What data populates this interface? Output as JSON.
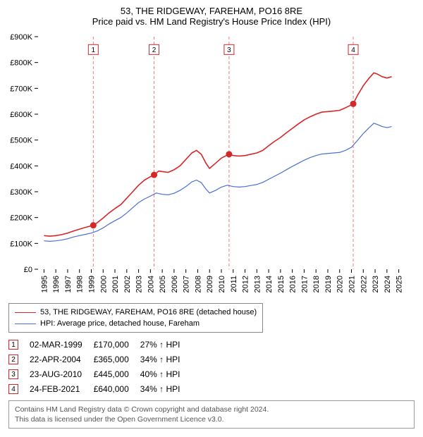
{
  "titles": {
    "line1": "53, THE RIDGEWAY, FAREHAM, PO16 8RE",
    "line2": "Price paid vs. HM Land Registry's House Price Index (HPI)"
  },
  "chart": {
    "type": "line",
    "background_color": "#ffffff",
    "xlim": [
      1994.5,
      2025.5
    ],
    "ylim": [
      0,
      900000
    ],
    "xtick_step": 1,
    "xtick_labels": [
      "1995",
      "1996",
      "1997",
      "1998",
      "1999",
      "2000",
      "2001",
      "2002",
      "2003",
      "2004",
      "2005",
      "2006",
      "2007",
      "2008",
      "2009",
      "2010",
      "2011",
      "2012",
      "2013",
      "2014",
      "2015",
      "2016",
      "2017",
      "2018",
      "2019",
      "2020",
      "2021",
      "2022",
      "2023",
      "2024",
      "2025"
    ],
    "ytick_step": 100000,
    "ytick_labels": [
      "£0",
      "£100K",
      "£200K",
      "£300K",
      "£400K",
      "£500K",
      "£600K",
      "£700K",
      "£800K",
      "£900K"
    ],
    "ytick_color": "#000000",
    "ytick_fontsize": 11,
    "xtick_fontsize": 11,
    "x_tick_length": 5,
    "y_tick_length": 5,
    "tick_color": "#000000",
    "event_vline": {
      "color": "#e67f7f",
      "dash": "4 3",
      "width": 1
    },
    "event_box": {
      "border_color": "#d62728",
      "bg_color": "#ffffff",
      "text_color": "#000000",
      "size": 14,
      "fontsize": 10,
      "y_value": 850000
    },
    "series": [
      {
        "id": "property",
        "label": "53, THE RIDGEWAY, FAREHAM, PO16 8RE (detached house)",
        "color": "#d62728",
        "width": 1.6,
        "marker": {
          "shape": "circle",
          "size": 4.5,
          "color": "#d62728"
        },
        "marker_points": [
          {
            "x": 1999.17,
            "y": 170000
          },
          {
            "x": 2004.31,
            "y": 365000
          },
          {
            "x": 2010.65,
            "y": 445000
          },
          {
            "x": 2021.15,
            "y": 640000
          }
        ],
        "points": [
          {
            "x": 1995.0,
            "y": 130000
          },
          {
            "x": 1995.5,
            "y": 128000
          },
          {
            "x": 1996.0,
            "y": 130000
          },
          {
            "x": 1996.5,
            "y": 134000
          },
          {
            "x": 1997.0,
            "y": 140000
          },
          {
            "x": 1997.5,
            "y": 148000
          },
          {
            "x": 1998.0,
            "y": 155000
          },
          {
            "x": 1998.5,
            "y": 162000
          },
          {
            "x": 1999.0,
            "y": 168000
          },
          {
            "x": 1999.17,
            "y": 170000
          },
          {
            "x": 1999.5,
            "y": 180000
          },
          {
            "x": 2000.0,
            "y": 198000
          },
          {
            "x": 2000.5,
            "y": 218000
          },
          {
            "x": 2001.0,
            "y": 235000
          },
          {
            "x": 2001.5,
            "y": 250000
          },
          {
            "x": 2002.0,
            "y": 275000
          },
          {
            "x": 2002.5,
            "y": 300000
          },
          {
            "x": 2003.0,
            "y": 325000
          },
          {
            "x": 2003.5,
            "y": 345000
          },
          {
            "x": 2004.0,
            "y": 358000
          },
          {
            "x": 2004.31,
            "y": 365000
          },
          {
            "x": 2004.7,
            "y": 380000
          },
          {
            "x": 2005.0,
            "y": 378000
          },
          {
            "x": 2005.5,
            "y": 375000
          },
          {
            "x": 2006.0,
            "y": 385000
          },
          {
            "x": 2006.5,
            "y": 400000
          },
          {
            "x": 2007.0,
            "y": 425000
          },
          {
            "x": 2007.5,
            "y": 450000
          },
          {
            "x": 2007.9,
            "y": 460000
          },
          {
            "x": 2008.3,
            "y": 445000
          },
          {
            "x": 2008.7,
            "y": 410000
          },
          {
            "x": 2009.0,
            "y": 390000
          },
          {
            "x": 2009.5,
            "y": 410000
          },
          {
            "x": 2010.0,
            "y": 430000
          },
          {
            "x": 2010.5,
            "y": 442000
          },
          {
            "x": 2010.65,
            "y": 445000
          },
          {
            "x": 2011.0,
            "y": 440000
          },
          {
            "x": 2011.5,
            "y": 438000
          },
          {
            "x": 2012.0,
            "y": 440000
          },
          {
            "x": 2012.5,
            "y": 445000
          },
          {
            "x": 2013.0,
            "y": 450000
          },
          {
            "x": 2013.5,
            "y": 460000
          },
          {
            "x": 2014.0,
            "y": 478000
          },
          {
            "x": 2014.5,
            "y": 495000
          },
          {
            "x": 2015.0,
            "y": 510000
          },
          {
            "x": 2015.5,
            "y": 528000
          },
          {
            "x": 2016.0,
            "y": 545000
          },
          {
            "x": 2016.5,
            "y": 562000
          },
          {
            "x": 2017.0,
            "y": 578000
          },
          {
            "x": 2017.5,
            "y": 590000
          },
          {
            "x": 2018.0,
            "y": 600000
          },
          {
            "x": 2018.5,
            "y": 608000
          },
          {
            "x": 2019.0,
            "y": 610000
          },
          {
            "x": 2019.5,
            "y": 612000
          },
          {
            "x": 2020.0,
            "y": 615000
          },
          {
            "x": 2020.5,
            "y": 625000
          },
          {
            "x": 2021.0,
            "y": 636000
          },
          {
            "x": 2021.15,
            "y": 640000
          },
          {
            "x": 2021.5,
            "y": 672000
          },
          {
            "x": 2022.0,
            "y": 710000
          },
          {
            "x": 2022.5,
            "y": 740000
          },
          {
            "x": 2022.9,
            "y": 760000
          },
          {
            "x": 2023.2,
            "y": 755000
          },
          {
            "x": 2023.6,
            "y": 745000
          },
          {
            "x": 2024.0,
            "y": 740000
          },
          {
            "x": 2024.4,
            "y": 745000
          }
        ]
      },
      {
        "id": "hpi",
        "label": "HPI: Average price, detached house, Fareham",
        "color": "#4a6fd4",
        "width": 1.2,
        "points": [
          {
            "x": 1995.0,
            "y": 110000
          },
          {
            "x": 1995.5,
            "y": 108000
          },
          {
            "x": 1996.0,
            "y": 110000
          },
          {
            "x": 1996.5,
            "y": 113000
          },
          {
            "x": 1997.0,
            "y": 118000
          },
          {
            "x": 1997.5,
            "y": 125000
          },
          {
            "x": 1998.0,
            "y": 130000
          },
          {
            "x": 1998.5,
            "y": 135000
          },
          {
            "x": 1999.0,
            "y": 140000
          },
          {
            "x": 1999.5,
            "y": 148000
          },
          {
            "x": 2000.0,
            "y": 160000
          },
          {
            "x": 2000.5,
            "y": 175000
          },
          {
            "x": 2001.0,
            "y": 188000
          },
          {
            "x": 2001.5,
            "y": 200000
          },
          {
            "x": 2002.0,
            "y": 218000
          },
          {
            "x": 2002.5,
            "y": 238000
          },
          {
            "x": 2003.0,
            "y": 258000
          },
          {
            "x": 2003.5,
            "y": 272000
          },
          {
            "x": 2004.0,
            "y": 283000
          },
          {
            "x": 2004.5,
            "y": 295000
          },
          {
            "x": 2005.0,
            "y": 290000
          },
          {
            "x": 2005.5,
            "y": 288000
          },
          {
            "x": 2006.0,
            "y": 294000
          },
          {
            "x": 2006.5,
            "y": 305000
          },
          {
            "x": 2007.0,
            "y": 320000
          },
          {
            "x": 2007.5,
            "y": 338000
          },
          {
            "x": 2007.9,
            "y": 345000
          },
          {
            "x": 2008.3,
            "y": 335000
          },
          {
            "x": 2008.7,
            "y": 310000
          },
          {
            "x": 2009.0,
            "y": 295000
          },
          {
            "x": 2009.5,
            "y": 305000
          },
          {
            "x": 2010.0,
            "y": 318000
          },
          {
            "x": 2010.5,
            "y": 325000
          },
          {
            "x": 2011.0,
            "y": 320000
          },
          {
            "x": 2011.5,
            "y": 318000
          },
          {
            "x": 2012.0,
            "y": 320000
          },
          {
            "x": 2012.5,
            "y": 324000
          },
          {
            "x": 2013.0,
            "y": 328000
          },
          {
            "x": 2013.5,
            "y": 336000
          },
          {
            "x": 2014.0,
            "y": 348000
          },
          {
            "x": 2014.5,
            "y": 360000
          },
          {
            "x": 2015.0,
            "y": 372000
          },
          {
            "x": 2015.5,
            "y": 385000
          },
          {
            "x": 2016.0,
            "y": 398000
          },
          {
            "x": 2016.5,
            "y": 410000
          },
          {
            "x": 2017.0,
            "y": 422000
          },
          {
            "x": 2017.5,
            "y": 432000
          },
          {
            "x": 2018.0,
            "y": 440000
          },
          {
            "x": 2018.5,
            "y": 446000
          },
          {
            "x": 2019.0,
            "y": 448000
          },
          {
            "x": 2019.5,
            "y": 450000
          },
          {
            "x": 2020.0,
            "y": 452000
          },
          {
            "x": 2020.5,
            "y": 460000
          },
          {
            "x": 2021.0,
            "y": 472000
          },
          {
            "x": 2021.5,
            "y": 498000
          },
          {
            "x": 2022.0,
            "y": 525000
          },
          {
            "x": 2022.5,
            "y": 548000
          },
          {
            "x": 2022.9,
            "y": 565000
          },
          {
            "x": 2023.2,
            "y": 560000
          },
          {
            "x": 2023.6,
            "y": 552000
          },
          {
            "x": 2024.0,
            "y": 548000
          },
          {
            "x": 2024.4,
            "y": 552000
          }
        ]
      }
    ]
  },
  "legend": {
    "items": [
      {
        "series_id": "property"
      },
      {
        "series_id": "hpi"
      }
    ]
  },
  "events": [
    {
      "n": "1",
      "date": "02-MAR-1999",
      "x": 1999.17,
      "price": "£170,000",
      "delta": "27% ↑ HPI"
    },
    {
      "n": "2",
      "date": "22-APR-2004",
      "x": 2004.31,
      "price": "£365,000",
      "delta": "34% ↑ HPI"
    },
    {
      "n": "3",
      "date": "23-AUG-2010",
      "x": 2010.65,
      "price": "£445,000",
      "delta": "40% ↑ HPI"
    },
    {
      "n": "4",
      "date": "24-FEB-2021",
      "x": 2021.15,
      "price": "£640,000",
      "delta": "34% ↑ HPI"
    }
  ],
  "footer": {
    "line1": "Contains HM Land Registry data © Crown copyright and database right 2024.",
    "line2": "This data is licensed under the Open Government Licence v3.0."
  }
}
